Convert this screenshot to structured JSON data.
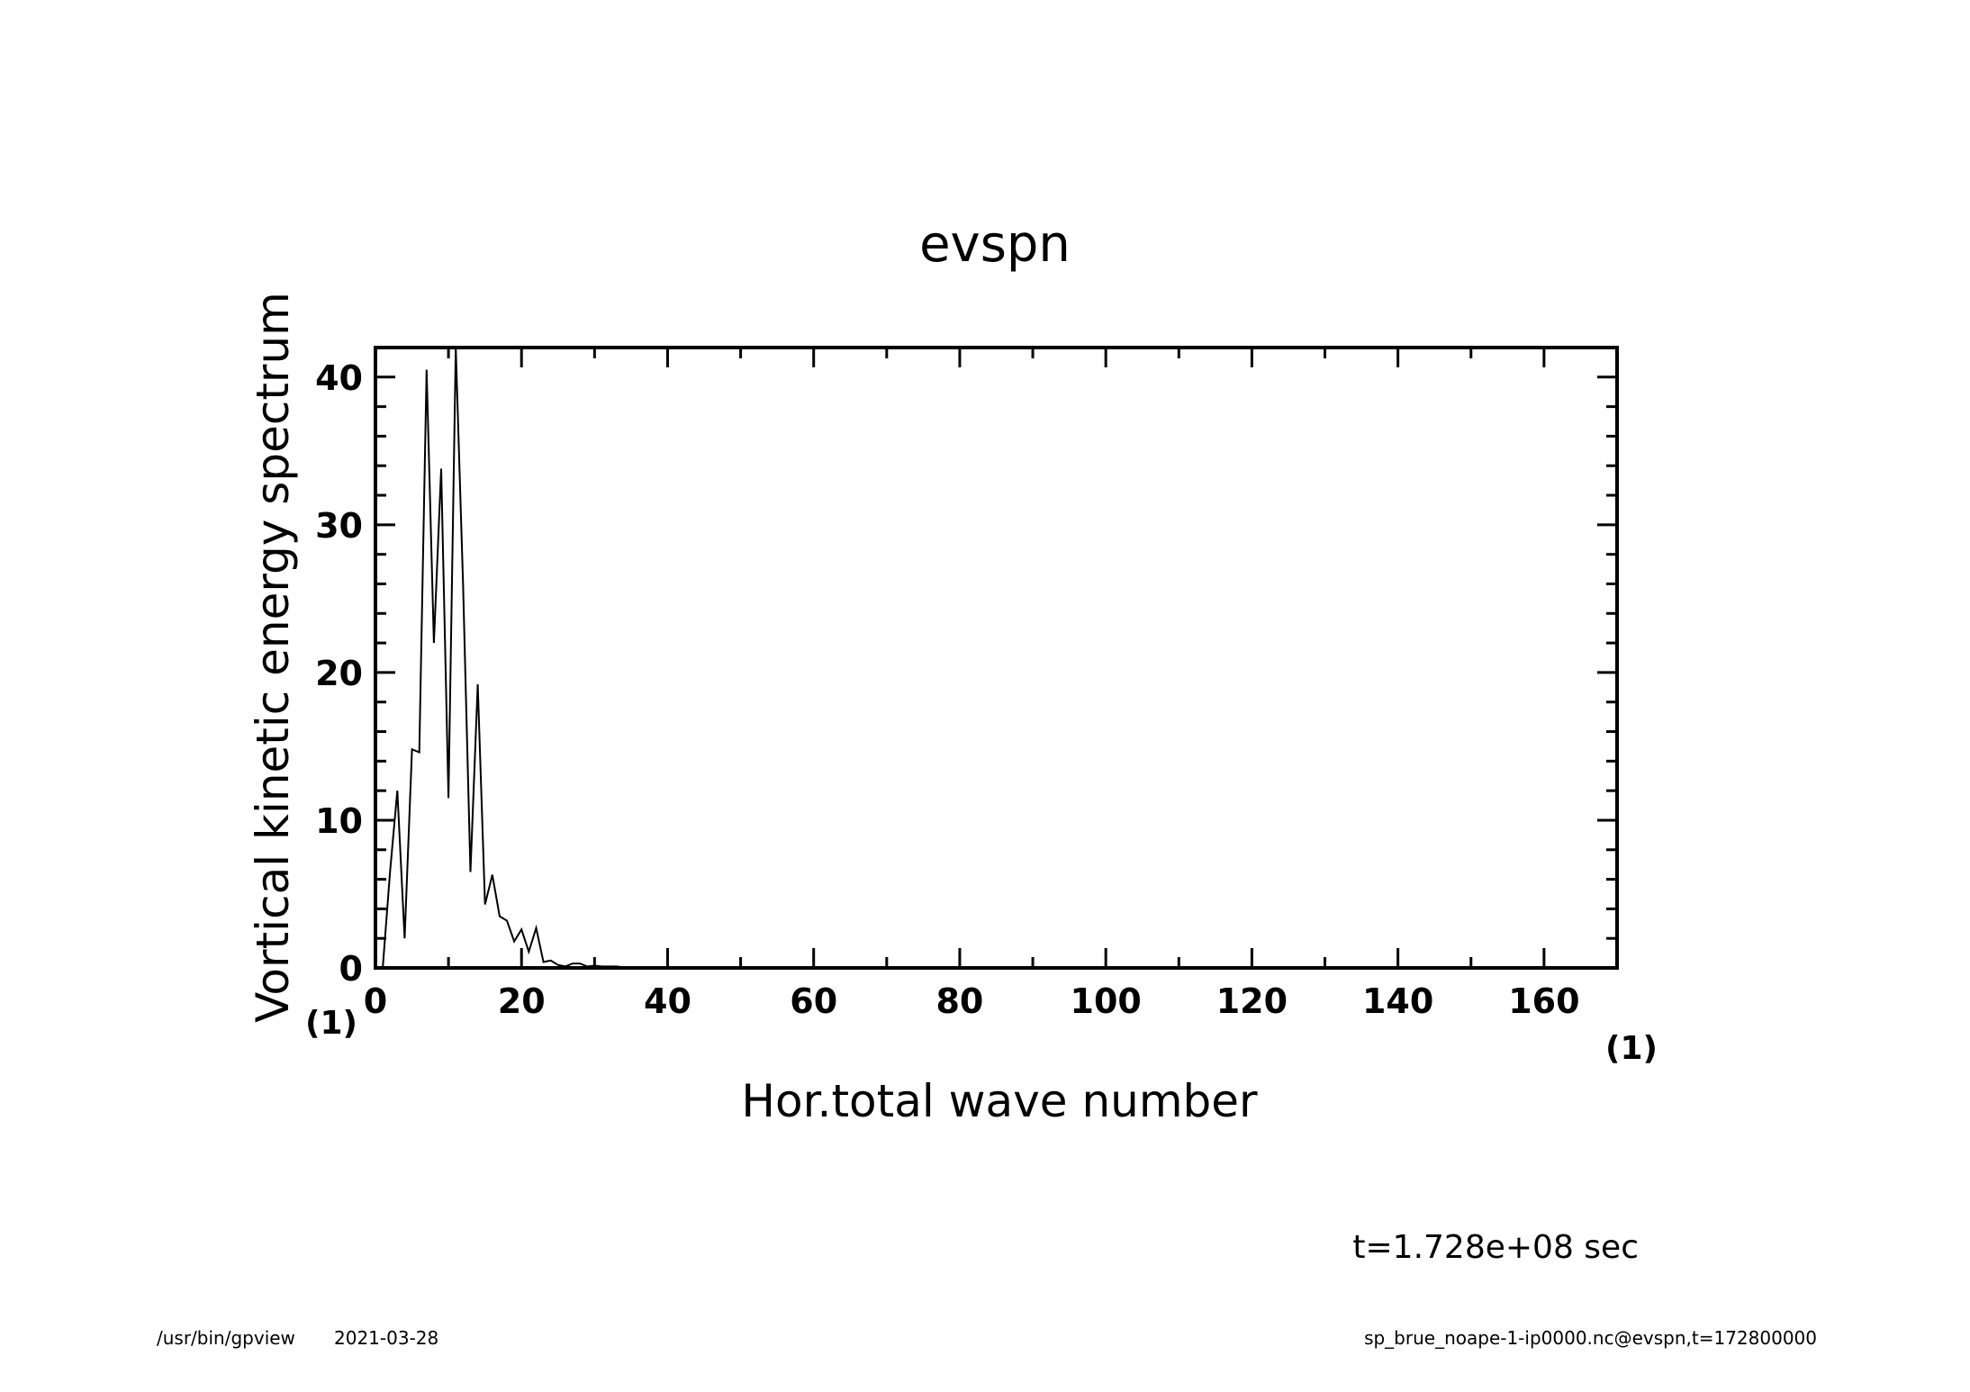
{
  "chart_data": {
    "type": "line",
    "title": "evspn",
    "xlabel": "Hor.total wave number",
    "ylabel": "Vortical kinetic energy spectrum",
    "x_unit": "(1)",
    "y_unit": "(1)",
    "xlim": [
      0,
      170
    ],
    "ylim": [
      0,
      42
    ],
    "x_ticks": [
      0,
      20,
      40,
      60,
      80,
      100,
      120,
      140,
      160
    ],
    "y_ticks": [
      0,
      10,
      20,
      30,
      40
    ],
    "grid": false,
    "series": [
      {
        "x": [
          0,
          1,
          2,
          3,
          4,
          5,
          6,
          7,
          8,
          9,
          10,
          11,
          12,
          13,
          14,
          15,
          16,
          17,
          18,
          19,
          20,
          21,
          22,
          23,
          24,
          25,
          26,
          27,
          28,
          29,
          30,
          31,
          32,
          33,
          34,
          35,
          36,
          37,
          38,
          39,
          40,
          45,
          50,
          60,
          80,
          100,
          120,
          140,
          160,
          170
        ],
        "y": [
          0,
          0,
          6.5,
          12,
          2,
          14.8,
          14.6,
          40.5,
          22,
          33.8,
          11.5,
          42,
          26,
          6.5,
          19.2,
          4.3,
          6.3,
          3.5,
          3.2,
          1.8,
          2.6,
          1.1,
          2.7,
          0.4,
          0.5,
          0.2,
          0.1,
          0.3,
          0.3,
          0.1,
          0.15,
          0.1,
          0.1,
          0.1,
          0.05,
          0.05,
          0.05,
          0.02,
          0.02,
          0.01,
          0,
          0,
          0,
          0,
          0,
          0,
          0,
          0,
          0,
          0
        ]
      }
    ]
  },
  "annotation": {
    "time": "t=1.728e+08 sec"
  },
  "footer": {
    "left_program": "/usr/bin/gpview",
    "left_date": "2021-03-28",
    "right": "sp_brue_noape-1-ip0000.nc@evspn,t=172800000"
  }
}
